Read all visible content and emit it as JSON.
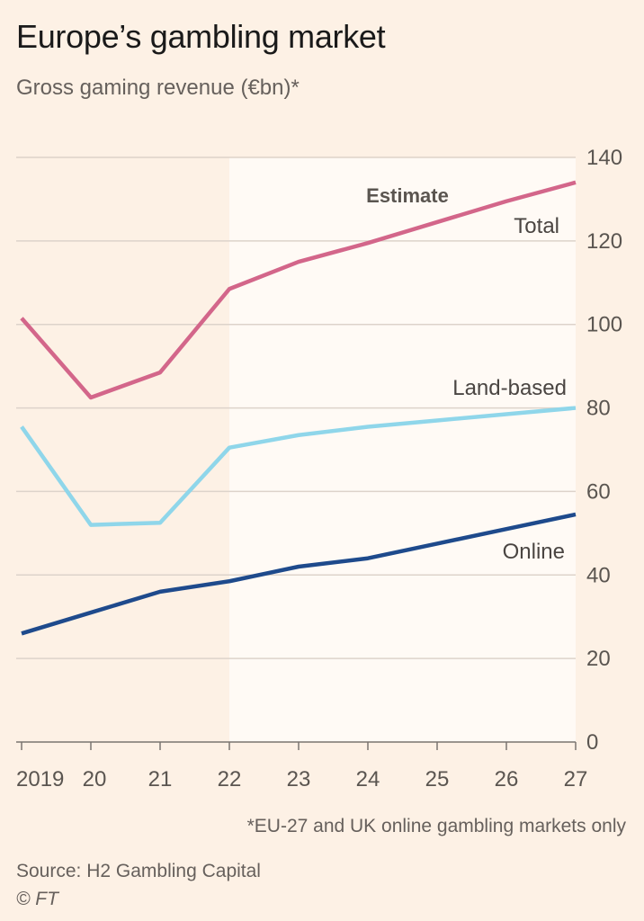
{
  "title": "Europe’s gambling market",
  "subtitle": "Gross gaming revenue (€bn)*",
  "footnote": "*EU-27 and UK online gambling markets only",
  "source": "Source: H2 Gambling Capital",
  "credit": "© FT",
  "chart_data": {
    "type": "line",
    "x": [
      "2019",
      "20",
      "21",
      "22",
      "23",
      "24",
      "25",
      "26",
      "27"
    ],
    "ylim": [
      0,
      140
    ],
    "yticks": [
      0,
      20,
      40,
      60,
      80,
      100,
      120,
      140
    ],
    "grid": true,
    "y_axis_side": "right",
    "estimate_label": "Estimate",
    "estimate_start": "22",
    "series": [
      {
        "name": "Total",
        "color": "#d3668a",
        "values": [
          101.5,
          82.5,
          88.5,
          108.5,
          115,
          119.5,
          124.5,
          129.5,
          134
        ]
      },
      {
        "name": "Land-based",
        "color": "#8fd6ea",
        "values": [
          75.5,
          52,
          52.5,
          70.5,
          73.5,
          75.5,
          77,
          78.5,
          80
        ]
      },
      {
        "name": "Online",
        "color": "#1e4a8c",
        "values": [
          26,
          31,
          36,
          38.5,
          42,
          44,
          47.5,
          51,
          54.5
        ]
      }
    ]
  }
}
